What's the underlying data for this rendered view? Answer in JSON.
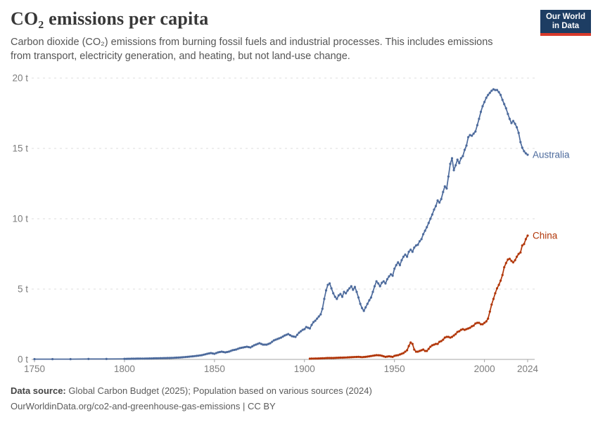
{
  "header": {
    "title": "CO₂ emissions per capita",
    "subtitle": "Carbon dioxide (CO₂) emissions from burning fossil fuels and industrial processes. This includes emissions from transport, electricity generation, and heating, but not land-use change.",
    "logo": {
      "line1": "Our World",
      "line2": "in Data"
    }
  },
  "footer": {
    "source_label": "Data source:",
    "source_text": " Global Carbon Budget (2025); Population based on various sources (2024)",
    "citation_text": "OurWorldinData.org/co2-and-greenhouse-gas-emissions | CC BY"
  },
  "colors": {
    "australia": "#4C6A9C",
    "china": "#B13507",
    "grid": "#dcdcdc",
    "axis": "#a5a5a5",
    "tick_text": "#7d7d7d",
    "logo_bg": "#1d3d63",
    "logo_bar": "#d93a2b"
  },
  "chart_data": {
    "type": "line",
    "title": "CO₂ emissions per capita",
    "unit": "t",
    "xlim": [
      1750,
      2024
    ],
    "ylim": [
      0,
      20
    ],
    "grid": "horizontal-dashed",
    "legend_position": "line-end-labels",
    "x_ticks": [
      1750,
      1800,
      1850,
      1900,
      1950,
      2000,
      2024
    ],
    "y_ticks": [
      0,
      5,
      10,
      15,
      20
    ],
    "y_tick_labels": [
      "0 t",
      "5 t",
      "10 t",
      "15 t",
      "20 t"
    ],
    "series": [
      {
        "name": "Australia",
        "color": "#4C6A9C",
        "points": [
          [
            1750,
            0.02
          ],
          [
            1760,
            0.02
          ],
          [
            1770,
            0.02
          ],
          [
            1780,
            0.03
          ],
          [
            1790,
            0.03
          ],
          [
            1800,
            0.04
          ],
          [
            1805,
            0.05
          ],
          [
            1810,
            0.06
          ],
          [
            1815,
            0.07
          ],
          [
            1820,
            0.09
          ],
          [
            1825,
            0.1
          ],
          [
            1830,
            0.13
          ],
          [
            1835,
            0.18
          ],
          [
            1840,
            0.25
          ],
          [
            1843,
            0.3
          ],
          [
            1846,
            0.4
          ],
          [
            1848,
            0.45
          ],
          [
            1850,
            0.4
          ],
          [
            1852,
            0.5
          ],
          [
            1854,
            0.55
          ],
          [
            1856,
            0.5
          ],
          [
            1858,
            0.55
          ],
          [
            1860,
            0.65
          ],
          [
            1862,
            0.7
          ],
          [
            1864,
            0.8
          ],
          [
            1866,
            0.85
          ],
          [
            1868,
            0.9
          ],
          [
            1870,
            0.85
          ],
          [
            1872,
            1.0
          ],
          [
            1874,
            1.1
          ],
          [
            1875,
            1.15
          ],
          [
            1877,
            1.05
          ],
          [
            1879,
            1.05
          ],
          [
            1881,
            1.15
          ],
          [
            1883,
            1.35
          ],
          [
            1885,
            1.45
          ],
          [
            1887,
            1.55
          ],
          [
            1889,
            1.7
          ],
          [
            1891,
            1.8
          ],
          [
            1893,
            1.65
          ],
          [
            1895,
            1.6
          ],
          [
            1897,
            1.9
          ],
          [
            1899,
            2.1
          ],
          [
            1900,
            2.15
          ],
          [
            1901,
            2.3
          ],
          [
            1902,
            2.25
          ],
          [
            1903,
            2.2
          ],
          [
            1904,
            2.45
          ],
          [
            1905,
            2.65
          ],
          [
            1906,
            2.75
          ],
          [
            1907,
            2.9
          ],
          [
            1908,
            3.05
          ],
          [
            1909,
            3.2
          ],
          [
            1910,
            3.6
          ],
          [
            1911,
            4.3
          ],
          [
            1912,
            4.9
          ],
          [
            1913,
            5.3
          ],
          [
            1914,
            5.4
          ],
          [
            1915,
            5.05
          ],
          [
            1916,
            4.7
          ],
          [
            1917,
            4.45
          ],
          [
            1918,
            4.3
          ],
          [
            1919,
            4.55
          ],
          [
            1920,
            4.65
          ],
          [
            1921,
            4.45
          ],
          [
            1922,
            4.8
          ],
          [
            1923,
            4.7
          ],
          [
            1924,
            4.9
          ],
          [
            1925,
            5.05
          ],
          [
            1926,
            5.2
          ],
          [
            1927,
            4.95
          ],
          [
            1928,
            5.15
          ],
          [
            1929,
            4.8
          ],
          [
            1930,
            4.4
          ],
          [
            1931,
            3.95
          ],
          [
            1932,
            3.65
          ],
          [
            1933,
            3.45
          ],
          [
            1934,
            3.7
          ],
          [
            1935,
            3.95
          ],
          [
            1936,
            4.2
          ],
          [
            1937,
            4.4
          ],
          [
            1938,
            4.8
          ],
          [
            1939,
            5.2
          ],
          [
            1940,
            5.55
          ],
          [
            1941,
            5.4
          ],
          [
            1942,
            5.2
          ],
          [
            1943,
            5.45
          ],
          [
            1944,
            5.55
          ],
          [
            1945,
            5.4
          ],
          [
            1946,
            5.7
          ],
          [
            1947,
            5.9
          ],
          [
            1948,
            6.05
          ],
          [
            1949,
            5.95
          ],
          [
            1950,
            6.45
          ],
          [
            1951,
            6.7
          ],
          [
            1952,
            6.9
          ],
          [
            1953,
            6.7
          ],
          [
            1954,
            7.05
          ],
          [
            1955,
            7.3
          ],
          [
            1956,
            7.45
          ],
          [
            1957,
            7.3
          ],
          [
            1958,
            7.65
          ],
          [
            1959,
            7.8
          ],
          [
            1960,
            7.65
          ],
          [
            1961,
            7.95
          ],
          [
            1962,
            8.1
          ],
          [
            1963,
            8.15
          ],
          [
            1964,
            8.4
          ],
          [
            1965,
            8.55
          ],
          [
            1966,
            8.9
          ],
          [
            1967,
            9.15
          ],
          [
            1968,
            9.4
          ],
          [
            1969,
            9.7
          ],
          [
            1970,
            10.0
          ],
          [
            1971,
            10.3
          ],
          [
            1972,
            10.65
          ],
          [
            1973,
            10.9
          ],
          [
            1974,
            11.3
          ],
          [
            1975,
            11.15
          ],
          [
            1976,
            11.4
          ],
          [
            1977,
            11.9
          ],
          [
            1978,
            12.3
          ],
          [
            1979,
            12.15
          ],
          [
            1980,
            13.0
          ],
          [
            1981,
            13.9
          ],
          [
            1982,
            14.3
          ],
          [
            1983,
            13.45
          ],
          [
            1984,
            13.8
          ],
          [
            1985,
            14.2
          ],
          [
            1986,
            13.95
          ],
          [
            1987,
            14.3
          ],
          [
            1988,
            14.45
          ],
          [
            1989,
            14.9
          ],
          [
            1990,
            15.2
          ],
          [
            1991,
            15.8
          ],
          [
            1992,
            15.95
          ],
          [
            1993,
            15.9
          ],
          [
            1994,
            16.05
          ],
          [
            1995,
            16.2
          ],
          [
            1996,
            16.65
          ],
          [
            1997,
            17.1
          ],
          [
            1998,
            17.6
          ],
          [
            1999,
            18.0
          ],
          [
            2000,
            18.3
          ],
          [
            2001,
            18.6
          ],
          [
            2002,
            18.8
          ],
          [
            2003,
            18.95
          ],
          [
            2004,
            19.1
          ],
          [
            2005,
            19.2
          ],
          [
            2006,
            19.15
          ],
          [
            2007,
            19.15
          ],
          [
            2008,
            19.0
          ],
          [
            2009,
            18.8
          ],
          [
            2010,
            18.45
          ],
          [
            2011,
            18.15
          ],
          [
            2012,
            17.85
          ],
          [
            2013,
            17.45
          ],
          [
            2014,
            17.1
          ],
          [
            2015,
            16.8
          ],
          [
            2016,
            16.95
          ],
          [
            2017,
            16.75
          ],
          [
            2018,
            16.5
          ],
          [
            2019,
            16.1
          ],
          [
            2020,
            15.45
          ],
          [
            2021,
            15.05
          ],
          [
            2022,
            14.8
          ],
          [
            2023,
            14.65
          ],
          [
            2024,
            14.55
          ]
        ]
      },
      {
        "name": "China",
        "color": "#B13507",
        "points": [
          [
            1903,
            0.05
          ],
          [
            1905,
            0.06
          ],
          [
            1908,
            0.07
          ],
          [
            1910,
            0.08
          ],
          [
            1913,
            0.1
          ],
          [
            1916,
            0.1
          ],
          [
            1919,
            0.12
          ],
          [
            1922,
            0.13
          ],
          [
            1925,
            0.15
          ],
          [
            1928,
            0.17
          ],
          [
            1930,
            0.18
          ],
          [
            1932,
            0.16
          ],
          [
            1934,
            0.18
          ],
          [
            1936,
            0.22
          ],
          [
            1938,
            0.26
          ],
          [
            1940,
            0.3
          ],
          [
            1942,
            0.29
          ],
          [
            1944,
            0.22
          ],
          [
            1945,
            0.18
          ],
          [
            1947,
            0.22
          ],
          [
            1949,
            0.18
          ],
          [
            1950,
            0.25
          ],
          [
            1951,
            0.28
          ],
          [
            1952,
            0.3
          ],
          [
            1953,
            0.35
          ],
          [
            1954,
            0.4
          ],
          [
            1955,
            0.45
          ],
          [
            1956,
            0.55
          ],
          [
            1957,
            0.65
          ],
          [
            1958,
            0.95
          ],
          [
            1959,
            1.2
          ],
          [
            1960,
            1.1
          ],
          [
            1961,
            0.7
          ],
          [
            1962,
            0.55
          ],
          [
            1963,
            0.55
          ],
          [
            1964,
            0.6
          ],
          [
            1965,
            0.65
          ],
          [
            1966,
            0.7
          ],
          [
            1967,
            0.6
          ],
          [
            1968,
            0.6
          ],
          [
            1969,
            0.75
          ],
          [
            1970,
            0.9
          ],
          [
            1971,
            1.0
          ],
          [
            1972,
            1.05
          ],
          [
            1973,
            1.1
          ],
          [
            1974,
            1.1
          ],
          [
            1975,
            1.25
          ],
          [
            1976,
            1.3
          ],
          [
            1977,
            1.4
          ],
          [
            1978,
            1.55
          ],
          [
            1979,
            1.6
          ],
          [
            1980,
            1.6
          ],
          [
            1981,
            1.55
          ],
          [
            1982,
            1.6
          ],
          [
            1983,
            1.7
          ],
          [
            1984,
            1.8
          ],
          [
            1985,
            1.95
          ],
          [
            1986,
            2.0
          ],
          [
            1987,
            2.1
          ],
          [
            1988,
            2.15
          ],
          [
            1989,
            2.1
          ],
          [
            1990,
            2.15
          ],
          [
            1991,
            2.2
          ],
          [
            1992,
            2.25
          ],
          [
            1993,
            2.35
          ],
          [
            1994,
            2.4
          ],
          [
            1995,
            2.55
          ],
          [
            1996,
            2.6
          ],
          [
            1997,
            2.6
          ],
          [
            1998,
            2.5
          ],
          [
            1999,
            2.5
          ],
          [
            2000,
            2.6
          ],
          [
            2001,
            2.7
          ],
          [
            2002,
            2.9
          ],
          [
            2003,
            3.4
          ],
          [
            2004,
            3.9
          ],
          [
            2005,
            4.3
          ],
          [
            2006,
            4.7
          ],
          [
            2007,
            5.05
          ],
          [
            2008,
            5.3
          ],
          [
            2009,
            5.6
          ],
          [
            2010,
            6.0
          ],
          [
            2011,
            6.55
          ],
          [
            2012,
            6.85
          ],
          [
            2013,
            7.1
          ],
          [
            2014,
            7.15
          ],
          [
            2015,
            7.0
          ],
          [
            2016,
            6.9
          ],
          [
            2017,
            7.05
          ],
          [
            2018,
            7.3
          ],
          [
            2019,
            7.5
          ],
          [
            2020,
            7.6
          ],
          [
            2021,
            8.1
          ],
          [
            2022,
            8.2
          ],
          [
            2023,
            8.55
          ],
          [
            2024,
            8.8
          ]
        ]
      }
    ]
  }
}
